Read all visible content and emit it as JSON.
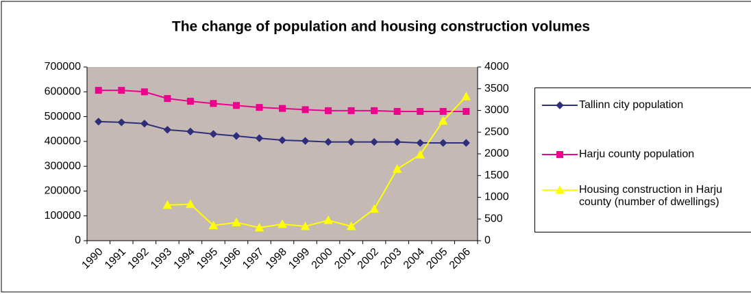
{
  "chart_data": {
    "type": "line",
    "title": "The change of population and housing construction volumes",
    "categories": [
      "1990",
      "1991",
      "1992",
      "1993",
      "1994",
      "1995",
      "1996",
      "1997",
      "1998",
      "1999",
      "2000",
      "2001",
      "2002",
      "2003",
      "2004",
      "2005",
      "2006"
    ],
    "series": [
      {
        "name": "Tallinn city population",
        "color": "#2e2e7a",
        "marker": "diamond",
        "values": [
          480000,
          477000,
          472000,
          447000,
          440000,
          430000,
          422000,
          413000,
          405000,
          402000,
          398000,
          398000,
          398000,
          398000,
          394000,
          394000,
          394000
        ]
      },
      {
        "name": "Harju county population",
        "color": "#ec008c",
        "marker": "square",
        "values": [
          606000,
          606000,
          600000,
          573000,
          562000,
          553000,
          545000,
          537000,
          533000,
          528000,
          524000,
          524000,
          524000,
          521000,
          521000,
          521000,
          521000
        ]
      },
      {
        "name": "Housing construction in Harju county (number of dwellings)",
        "color": "#ffff00",
        "marker": "triangle",
        "axis": "y2",
        "values": [
          null,
          null,
          null,
          820,
          840,
          350,
          420,
          300,
          380,
          330,
          470,
          330,
          730,
          1650,
          1980,
          2760,
          3320
        ]
      }
    ],
    "ylim": [
      0,
      700000
    ],
    "yticks": [
      0,
      100000,
      200000,
      300000,
      400000,
      500000,
      600000,
      700000
    ],
    "y2lim": [
      0,
      4000
    ],
    "y2ticks": [
      0,
      500,
      1000,
      1500,
      2000,
      2500,
      3000,
      3500,
      4000
    ],
    "grid": false,
    "legend": "right"
  }
}
